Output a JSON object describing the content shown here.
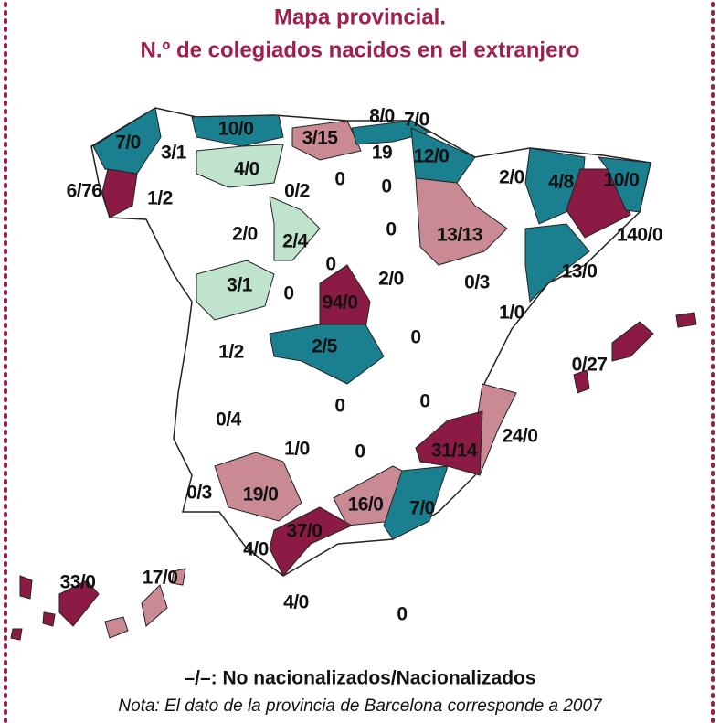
{
  "title": [
    "Mapa provincial.",
    "N.º de colegiados nacidos en el extranjero"
  ],
  "provinces": [
    "7/0",
    "3/1",
    "10/0",
    "3/15",
    "8/0",
    "7/0",
    "19",
    "12/0",
    "6/76",
    "1/2",
    "4/0",
    "0/2",
    "0",
    "0",
    "2/0",
    "4/8",
    "10/0",
    "2/0",
    "2/4",
    "0",
    "13/13",
    "140/0",
    "0",
    "2/0",
    "0/3",
    "13/0",
    "3/1",
    "0",
    "94/0",
    "1/0",
    "1/2",
    "2/5",
    "0",
    "0/27",
    "0/4",
    "0",
    "0",
    "24/0",
    "1/0",
    "0",
    "31/14",
    "0/3",
    "19/0",
    "16/0",
    "7/0",
    "37/0",
    "4/0",
    "33/0",
    "17/0",
    "4/0",
    "0"
  ],
  "legend": "–/–: No nacionalizados/Nacionalizados",
  "note": "Nota: El dato de la provincia de Barcelona corresponde a 2007"
}
